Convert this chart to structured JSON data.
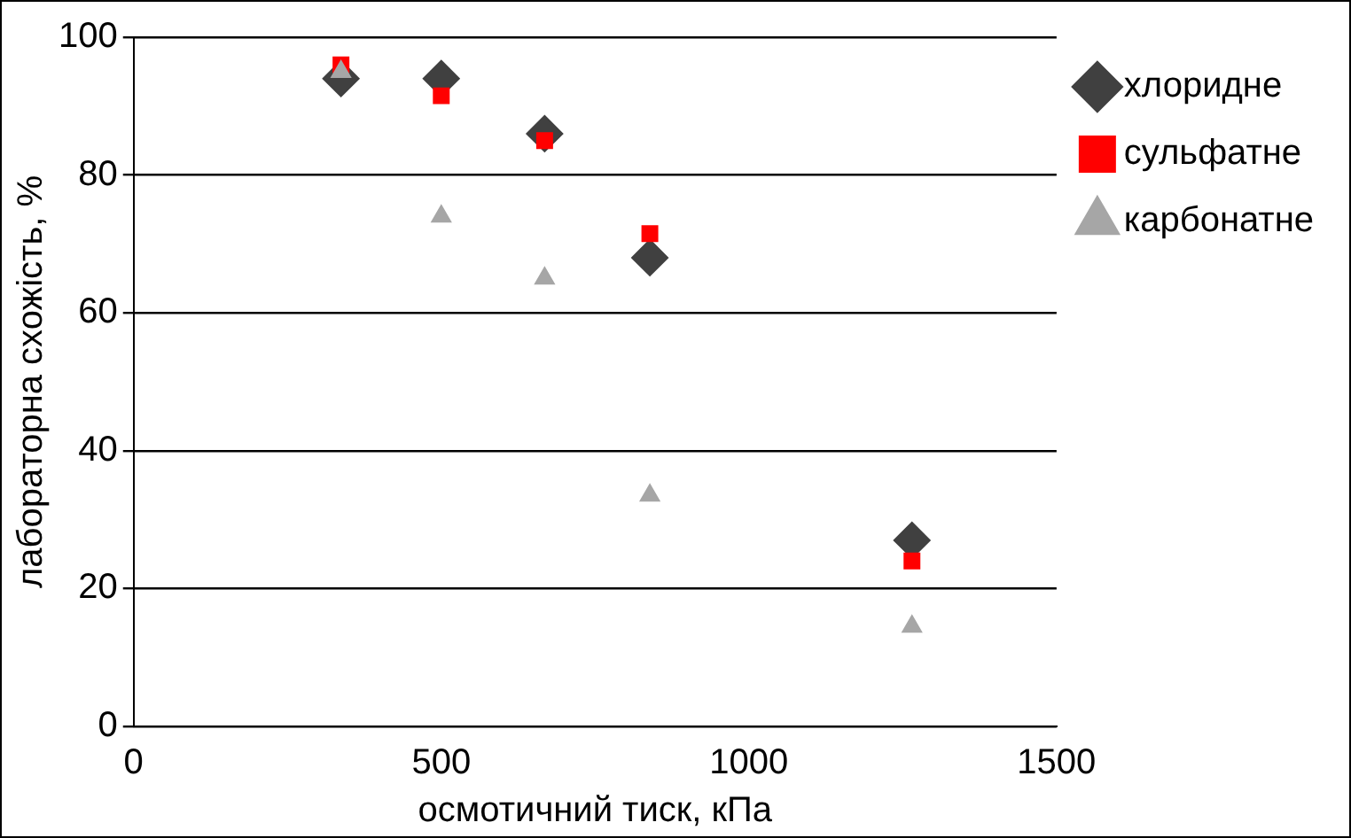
{
  "chart_data": {
    "type": "scatter",
    "xlabel": "осмотичний тиск, кПа",
    "ylabel": "лабораторна схожість, %",
    "xlim": [
      0,
      1500
    ],
    "xticks": [
      0,
      500,
      1000,
      1500
    ],
    "ylim": [
      0,
      100
    ],
    "yticks": [
      0,
      20,
      40,
      60,
      80,
      100
    ],
    "grid": "y",
    "legend": "right",
    "series": [
      {
        "name": "хлоридне",
        "color": "#404040",
        "marker": "diamond",
        "x": [
          337,
          500,
          668,
          839,
          1265
        ],
        "values": [
          94,
          94,
          86,
          68,
          27
        ]
      },
      {
        "name": "сульфатне",
        "color": "#ff0000",
        "marker": "square",
        "x": [
          337,
          500,
          668,
          839,
          1265
        ],
        "values": [
          96,
          91.5,
          85,
          71.5,
          24
        ]
      },
      {
        "name": "карбонатне",
        "color": "#a6a6a6",
        "marker": "triangle",
        "x": [
          337,
          500,
          668,
          839,
          1265
        ],
        "values": [
          95,
          74,
          65,
          33.5,
          14.5
        ]
      }
    ]
  }
}
